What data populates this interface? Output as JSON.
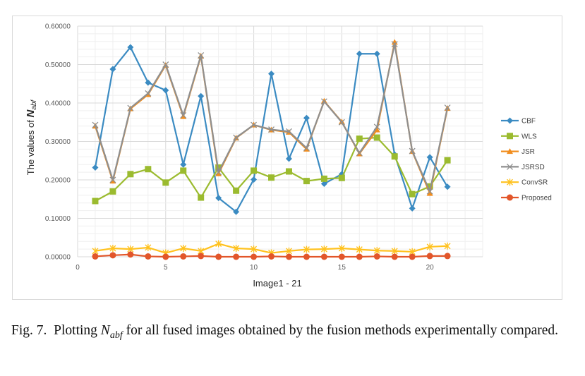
{
  "chart_data": {
    "type": "line",
    "title": "",
    "xlabel": "Image1 - 21",
    "ylabel": "The values of N_abf",
    "ylabel_main": "The values of ",
    "ylabel_symbol": "N",
    "ylabel_subscript": "abf",
    "xlim": [
      0,
      23
    ],
    "ylim": [
      0,
      0.6
    ],
    "x_ticks": [
      0,
      5,
      10,
      15,
      20
    ],
    "x_tick_labels": [
      "0",
      "5",
      "10",
      "15",
      "20"
    ],
    "y_ticks": [
      0,
      0.1,
      0.2,
      0.3,
      0.4,
      0.5,
      0.6
    ],
    "y_tick_labels": [
      "0.00000",
      "0.10000",
      "0.20000",
      "0.30000",
      "0.40000",
      "0.50000",
      "0.60000"
    ],
    "grid": true,
    "legend_position": "right",
    "x": [
      1,
      2,
      3,
      4,
      5,
      6,
      7,
      8,
      9,
      10,
      11,
      12,
      13,
      14,
      15,
      16,
      17,
      18,
      19,
      20,
      21
    ],
    "series": [
      {
        "name": "CBF",
        "color": "#3b8bc2",
        "marker": "diamond",
        "values": [
          0.232,
          0.488,
          0.545,
          0.453,
          0.433,
          0.24,
          0.418,
          0.153,
          0.117,
          0.201,
          0.476,
          0.255,
          0.361,
          0.19,
          0.215,
          0.528,
          0.528,
          0.266,
          0.126,
          0.259,
          0.182
        ]
      },
      {
        "name": "WLS",
        "color": "#9bbb2f",
        "marker": "square",
        "values": [
          0.145,
          0.17,
          0.215,
          0.228,
          0.193,
          0.224,
          0.154,
          0.232,
          0.172,
          0.224,
          0.206,
          0.222,
          0.197,
          0.203,
          0.205,
          0.307,
          0.31,
          0.261,
          0.163,
          0.183,
          0.251
        ]
      },
      {
        "name": "JSR",
        "color": "#f18d1e",
        "marker": "triangle",
        "values": [
          0.34,
          0.197,
          0.385,
          0.422,
          0.498,
          0.365,
          0.522,
          0.216,
          0.309,
          0.343,
          0.33,
          0.324,
          0.28,
          0.405,
          0.351,
          0.268,
          0.33,
          0.558,
          0.274,
          0.165,
          0.386
        ]
      },
      {
        "name": "JSRSD",
        "color": "#8f8f8f",
        "marker": "x",
        "values": [
          0.343,
          0.2,
          0.387,
          0.425,
          0.5,
          0.368,
          0.524,
          0.22,
          0.31,
          0.343,
          0.331,
          0.326,
          0.283,
          0.404,
          0.35,
          0.27,
          0.338,
          0.553,
          0.275,
          0.17,
          0.388
        ]
      },
      {
        "name": "ConvSR",
        "color": "#ffc21f",
        "marker": "star",
        "values": [
          0.015,
          0.022,
          0.02,
          0.024,
          0.01,
          0.022,
          0.015,
          0.034,
          0.022,
          0.02,
          0.01,
          0.015,
          0.019,
          0.02,
          0.022,
          0.019,
          0.016,
          0.015,
          0.013,
          0.026,
          0.028
        ]
      },
      {
        "name": "Proposed",
        "color": "#e2562a",
        "marker": "circle",
        "values": [
          0.001,
          0.004,
          0.006,
          0.001,
          0.0,
          0.001,
          0.002,
          0.0,
          0.0,
          0.0,
          0.001,
          0.0,
          0.0,
          0.0,
          0.0,
          0.0,
          0.001,
          0.0,
          0.0,
          0.002,
          0.002
        ]
      }
    ]
  },
  "caption": {
    "prefix": "Fig. 7.",
    "text_before": "Plotting ",
    "symbol": "N",
    "subscript": "abf",
    "text_after": " for all fused images obtained by the fusion methods experimentally compared."
  }
}
